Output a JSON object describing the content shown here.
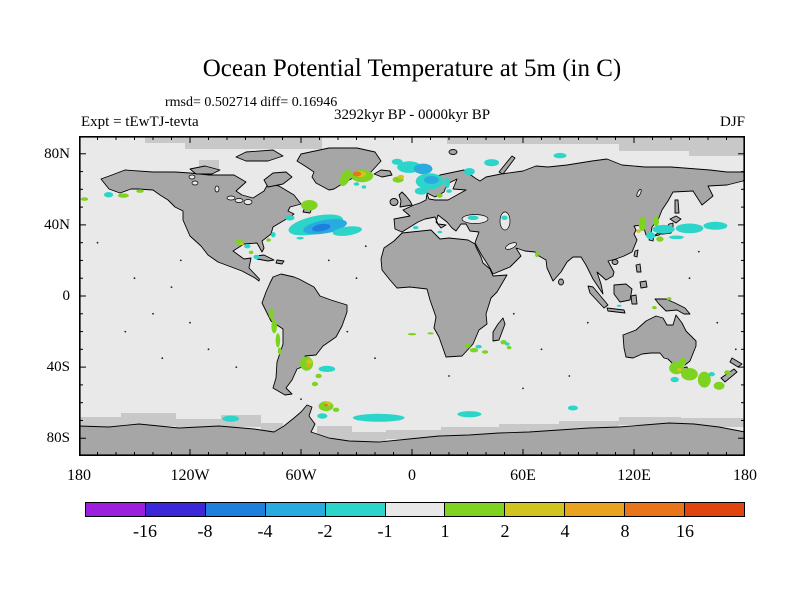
{
  "header": {
    "title": "Ocean Potential Temperature at 5m (in C)",
    "stats": "rmsd= 0.502714 diff= 0.16946",
    "period": "3292kyr BP - 0000kyr BP",
    "experiment": "Expt = tEwTJ-tevta",
    "season": "DJF"
  },
  "map_colors": {
    "land": "#A6A6A6",
    "ocean": "#E9E9E9",
    "mask": "#C8C8C8",
    "coast": "#000000"
  },
  "chart_data": {
    "type": "heatmap",
    "projection": "equirectangular world map",
    "title": "Ocean Potential Temperature at 5m (in C)",
    "variable": "ocean potential temperature anomaly at 5m depth",
    "units": "C",
    "rmsd": 0.502714,
    "diff": 0.16946,
    "comparison": "3292kyr BP - 0000kyr BP",
    "experiment": "tEwTJ-tevta",
    "season": "DJF",
    "grid": false,
    "x_axis": {
      "tick_labels": [
        "180",
        "120W",
        "60W",
        "0",
        "60E",
        "120E",
        "180"
      ],
      "tick_lons": [
        -180,
        -120,
        -60,
        0,
        60,
        120,
        180
      ],
      "minor_step_deg": 10,
      "range": [
        -180,
        180
      ]
    },
    "y_axis": {
      "tick_labels": [
        "80N",
        "40N",
        "0",
        "40S",
        "80S"
      ],
      "tick_lats": [
        80,
        40,
        0,
        -40,
        -80
      ],
      "minor_step_deg": 10,
      "range": [
        -90,
        90
      ]
    },
    "colorbar": {
      "position": "bottom",
      "boundaries": [
        -16,
        -8,
        -4,
        -2,
        -1,
        1,
        2,
        4,
        8,
        16
      ],
      "labels": [
        "-16",
        "-8",
        "-4",
        "-2",
        "-1",
        "1",
        "2",
        "4",
        "8",
        "16"
      ],
      "colors": [
        "#9C1FDE",
        "#3C28D8",
        "#1E7FDC",
        "#29ABE0",
        "#2BD5C9",
        "#E8E8E8",
        "#7ED321",
        "#D2C41E",
        "#E8A41E",
        "#E8751A",
        "#E0440F"
      ]
    },
    "background_note": "most of the ocean lies in the -1 to 1 C bin (light gray)",
    "anomalies": [
      {
        "name": "bering-sea-cyan",
        "lon": -164,
        "lat": 57,
        "dlon": 5,
        "dlat": 3,
        "value": -1.5
      },
      {
        "name": "bering-green",
        "lon": -156,
        "lat": 56.5,
        "dlon": 6,
        "dlat": 2.5,
        "value": 1.5
      },
      {
        "name": "aleutian-green",
        "lon": -177,
        "lat": 54.5,
        "dlon": 4,
        "dlat": 2,
        "value": 1.5
      },
      {
        "name": "gulf-alaska-green",
        "lon": -147,
        "lat": 59,
        "dlon": 4,
        "dlat": 2,
        "value": 1.5
      },
      {
        "name": "gulf-stream-cyan",
        "lon": -52,
        "lat": 40,
        "dlon": 30,
        "dlat": 10,
        "value": -1.5,
        "rot": -12
      },
      {
        "name": "gulf-stream-lightblue",
        "lon": -47,
        "lat": 39,
        "dlon": 24,
        "dlat": 7.5,
        "value": -3,
        "rot": -10
      },
      {
        "name": "gulf-stream-blue",
        "lon": -49,
        "lat": 38.5,
        "dlon": 10,
        "dlat": 4,
        "value": -5,
        "rot": -10
      },
      {
        "name": "gulf-stream-tail-cyan",
        "lon": -35,
        "lat": 36.5,
        "dlon": 16,
        "dlat": 5,
        "value": -1.5,
        "rot": -8
      },
      {
        "name": "nova-scotia-cyan",
        "lon": -66,
        "lat": 44,
        "dlon": 5,
        "dlat": 3,
        "value": -1.5
      },
      {
        "name": "grand-banks-green",
        "lon": -55.5,
        "lat": 51,
        "dlon": 9,
        "dlat": 6,
        "value": 1.5
      },
      {
        "name": "sargasso-cyan-dash",
        "lon": -60.5,
        "lat": 32.5,
        "dlon": 4,
        "dlat": 1.5,
        "value": -1.5
      },
      {
        "name": "se-greenland-green",
        "lon": -36,
        "lat": 66.5,
        "dlon": 5,
        "dlat": 10,
        "value": 1.5,
        "rot": 25
      },
      {
        "name": "denmark-strait-green",
        "lon": -27,
        "lat": 67.5,
        "dlon": 12,
        "dlat": 7,
        "value": 1.5
      },
      {
        "name": "denmark-strait-yellow",
        "lon": -28,
        "lat": 68.6,
        "dlon": 6.5,
        "dlat": 3.5,
        "value": 3
      },
      {
        "name": "denmark-strait-orange",
        "lon": -29.7,
        "lat": 68.6,
        "dlon": 4.5,
        "dlat": 2.8,
        "value": 12
      },
      {
        "name": "irminger-cyan",
        "lon": -30,
        "lat": 63,
        "dlon": 3,
        "dlat": 2,
        "value": -1.5
      },
      {
        "name": "irminger-cyan2",
        "lon": -26,
        "lat": 61.3,
        "dlon": 2.5,
        "dlat": 1.8,
        "value": -1.5
      },
      {
        "name": "iceland-east-green",
        "lon": -7.5,
        "lat": 65.5,
        "dlon": 6,
        "dlat": 3.5,
        "value": 1.5
      },
      {
        "name": "iceland-ne-yellow",
        "lon": -6,
        "lat": 67,
        "dlon": 3.5,
        "dlat": 2.2,
        "value": 3
      },
      {
        "name": "norwegian-cyan-north",
        "lon": -1.5,
        "lat": 72.5,
        "dlon": 13,
        "dlat": 6.5,
        "value": -1.5
      },
      {
        "name": "norwegian-lightblue",
        "lon": 6,
        "lat": 71.5,
        "dlon": 10,
        "dlat": 6,
        "value": -3
      },
      {
        "name": "norwegian-cyan-south",
        "lon": 9.5,
        "lat": 64.5,
        "dlon": 15,
        "dlat": 9,
        "value": -1.5
      },
      {
        "name": "norwegian-lightblue-core",
        "lon": 10.5,
        "lat": 65.3,
        "dlon": 8,
        "dlat": 4.5,
        "value": -3
      },
      {
        "name": "north-sea-cyan",
        "lon": 5,
        "lat": 59,
        "dlon": 7,
        "dlat": 4,
        "value": -1.5
      },
      {
        "name": "iceland-north-cyan",
        "lon": -8,
        "lat": 75.5,
        "dlon": 6,
        "dlat": 3.5,
        "value": -1.5
      },
      {
        "name": "norway-coast-cyan",
        "lon": 19,
        "lat": 63.5,
        "dlon": 3,
        "dlat": 6,
        "value": -1.5
      },
      {
        "name": "skagerrak-green",
        "lon": 15,
        "lat": 56.5,
        "dlon": 3,
        "dlat": 2.5,
        "value": 1.5
      },
      {
        "name": "barents-cyan",
        "lon": 31,
        "lat": 70,
        "dlon": 6,
        "dlat": 4,
        "value": -1.5
      },
      {
        "name": "barents-cyan2",
        "lon": 43,
        "lat": 75,
        "dlon": 8,
        "dlat": 4,
        "value": -1.5
      },
      {
        "name": "kara-cyan",
        "lon": 80,
        "lat": 79,
        "dlon": 7,
        "dlat": 3,
        "value": -1.5
      },
      {
        "name": "baltic-cyan",
        "lon": 20,
        "lat": 59,
        "dlon": 3,
        "dlat": 2,
        "value": -1.5
      },
      {
        "name": "black-sea-cyan",
        "lon": 33,
        "lat": 44,
        "dlon": 6,
        "dlat": 2.5,
        "value": -1.5
      },
      {
        "name": "caspian-cyan",
        "lon": 50,
        "lat": 44,
        "dlon": 3.5,
        "dlat": 2.5,
        "value": -1.5
      },
      {
        "name": "west-med-cyan",
        "lon": 2,
        "lat": 38.5,
        "dlon": 3,
        "dlat": 1.8,
        "value": -1.5
      },
      {
        "name": "east-med-cyan",
        "lon": 15,
        "lat": 36,
        "dlon": 2.5,
        "dlat": 1.5,
        "value": -1.5
      },
      {
        "name": "bohai-green",
        "lon": 124.5,
        "lat": 40.5,
        "dlon": 4,
        "dlat": 8,
        "value": 1.5
      },
      {
        "name": "japan-sea-green",
        "lon": 132,
        "lat": 42,
        "dlon": 3,
        "dlat": 6,
        "value": 1.5
      },
      {
        "name": "east-china-cyan",
        "lon": 129,
        "lat": 34,
        "dlon": 5,
        "dlat": 4,
        "value": -1.5
      },
      {
        "name": "japan-south-cyan",
        "lon": 136,
        "lat": 37.5,
        "dlon": 12,
        "dlat": 5,
        "value": -1.5
      },
      {
        "name": "yellow-sea-yellow",
        "lon": 122.5,
        "lat": 36.5,
        "dlon": 2.5,
        "dlat": 2,
        "value": 3
      },
      {
        "name": "shikoku-green",
        "lon": 134,
        "lat": 32,
        "dlon": 4,
        "dlat": 3,
        "value": 1.5
      },
      {
        "name": "kuroshio-cyan-west",
        "lon": 150,
        "lat": 38,
        "dlon": 15,
        "dlat": 5.5,
        "value": -1.5
      },
      {
        "name": "kuroshio-cyan-east",
        "lon": 164,
        "lat": 39.5,
        "dlon": 13,
        "dlat": 4.5,
        "value": -1.5
      },
      {
        "name": "kuroshio-dash-cyan",
        "lon": 143,
        "lat": 33,
        "dlon": 8,
        "dlat": 2,
        "value": -1.5
      },
      {
        "name": "gulf-mexico-green",
        "lon": -93.5,
        "lat": 30.5,
        "dlon": 4.5,
        "dlat": 3,
        "value": 1.5
      },
      {
        "name": "gulf-mexico-yellow",
        "lon": -92,
        "lat": 29.3,
        "dlon": 2,
        "dlat": 1.5,
        "value": 3
      },
      {
        "name": "gulf-mexico-cyan",
        "lon": -89,
        "lat": 28,
        "dlon": 3.5,
        "dlat": 2.5,
        "value": -1.5
      },
      {
        "name": "yucatan-green",
        "lon": -87,
        "lat": 24.5,
        "dlon": 2.5,
        "dlat": 2,
        "value": 1.5
      },
      {
        "name": "caribbean-cyan",
        "lon": -84,
        "lat": 22,
        "dlon": 3.5,
        "dlat": 2.5,
        "value": -1.5
      },
      {
        "name": "bahamas-green",
        "lon": -77.5,
        "lat": 31.5,
        "dlon": 2.5,
        "dlat": 2,
        "value": 1.5
      },
      {
        "name": "hatteras-cyan",
        "lon": -75,
        "lat": 34.5,
        "dlon": 2.5,
        "dlat": 3,
        "value": -1.5
      },
      {
        "name": "peru-coast-green",
        "lon": -76,
        "lat": -10,
        "dlon": 3,
        "dlat": 6,
        "value": 1.5
      },
      {
        "name": "chile-north-green",
        "lon": -74.5,
        "lat": -17,
        "dlon": 3,
        "dlat": 8,
        "value": 1.5
      },
      {
        "name": "chile-central-green",
        "lon": -72.5,
        "lat": -25,
        "dlon": 2.5,
        "dlat": 8,
        "value": 1.5
      },
      {
        "name": "chile-south-green",
        "lon": -71.5,
        "lat": -31,
        "dlon": 2,
        "dlat": 4,
        "value": 1.5
      },
      {
        "name": "argentine-green",
        "lon": -57,
        "lat": -38,
        "dlon": 7,
        "dlat": 8,
        "value": 1.5
      },
      {
        "name": "argentine-yellow",
        "lon": -55.5,
        "lat": -37,
        "dlon": 3,
        "dlat": 3,
        "value": 3
      },
      {
        "name": "argentine-orange",
        "lon": -56,
        "lat": -39,
        "dlon": 2,
        "dlat": 2,
        "value": 6
      },
      {
        "name": "argentine-cyan",
        "lon": -46,
        "lat": -41,
        "dlon": 9,
        "dlat": 3.5,
        "value": -1.5
      },
      {
        "name": "patagonia-green",
        "lon": -50.5,
        "lat": -45,
        "dlon": 3.5,
        "dlat": 2.5,
        "value": 1.5
      },
      {
        "name": "falklands-green",
        "lon": -52.5,
        "lat": -49.5,
        "dlon": 3.5,
        "dlat": 2.5,
        "value": 1.5
      },
      {
        "name": "south-georgia-green",
        "lon": -46.5,
        "lat": -62,
        "dlon": 8,
        "dlat": 5.5,
        "value": 1.5
      },
      {
        "name": "south-georgia-yellow",
        "lon": -45.5,
        "lat": -60.7,
        "dlon": 3.5,
        "dlat": 2.5,
        "value": 3
      },
      {
        "name": "south-georgia-orange",
        "lon": -46.5,
        "lat": -61.3,
        "dlon": 2,
        "dlat": 1.5,
        "value": 12
      },
      {
        "name": "peninsula-green",
        "lon": -41,
        "lat": -64,
        "dlon": 3.5,
        "dlat": 2.5,
        "value": 1.5
      },
      {
        "name": "southern-ocean-pacific-cyan",
        "lon": -98,
        "lat": -69,
        "dlon": 9,
        "dlat": 3.5,
        "value": -1.5
      },
      {
        "name": "southern-ocean-weddell-cyan",
        "lon": -48.5,
        "lat": -67.5,
        "dlon": 5.5,
        "dlat": 3,
        "value": -1.5
      },
      {
        "name": "southern-ocean-atlantic-cyan",
        "lon": -18,
        "lat": -68.5,
        "dlon": 28,
        "dlat": 4.5,
        "value": -1.5
      },
      {
        "name": "southern-ocean-indian-cyan",
        "lon": 31,
        "lat": -66.5,
        "dlon": 13,
        "dlat": 3.5,
        "value": -1.5
      },
      {
        "name": "southern-ocean-indian2-cyan",
        "lon": 87,
        "lat": -63,
        "dlon": 5.5,
        "dlat": 2.8,
        "value": -1.5
      },
      {
        "name": "agulhas-green1",
        "lon": 30,
        "lat": -28,
        "dlon": 3.5,
        "dlat": 2.5,
        "value": 1.5
      },
      {
        "name": "agulhas-green2",
        "lon": 33.5,
        "lat": -30.5,
        "dlon": 4.5,
        "dlat": 2.5,
        "value": 1.5
      },
      {
        "name": "agulhas-cyan",
        "lon": 36,
        "lat": -28.5,
        "dlon": 3.5,
        "dlat": 2,
        "value": -1.5
      },
      {
        "name": "agulhas-green3",
        "lon": 39.5,
        "lat": -31.5,
        "dlon": 3.5,
        "dlat": 2,
        "value": 1.5
      },
      {
        "name": "walvis-green-dash",
        "lon": 0,
        "lat": -21.5,
        "dlon": 4.5,
        "dlat": 1.4,
        "value": 1.5
      },
      {
        "name": "walvis-green-dash2",
        "lon": 10,
        "lat": -21,
        "dlon": 3.5,
        "dlat": 1.2,
        "value": 1.5
      },
      {
        "name": "madagascar-green1",
        "lon": 49.5,
        "lat": -26,
        "dlon": 3.5,
        "dlat": 2.5,
        "value": 1.5
      },
      {
        "name": "madagascar-green2",
        "lon": 52.5,
        "lat": -29,
        "dlon": 2.5,
        "dlat": 2,
        "value": 1.5
      },
      {
        "name": "madagascar-cyan",
        "lon": 51.5,
        "lat": -27,
        "dlon": 2.5,
        "dlat": 1.8,
        "value": -1.5
      },
      {
        "name": "arabian-sea-green",
        "lon": 67.5,
        "lat": 23.5,
        "dlon": 2,
        "dlat": 3.5,
        "value": 1.5
      },
      {
        "name": "tasman-green1",
        "lon": 143,
        "lat": -40.5,
        "dlon": 8,
        "dlat": 7,
        "value": 1.5
      },
      {
        "name": "tasman-green2",
        "lon": 150,
        "lat": -44,
        "dlon": 9,
        "dlat": 7,
        "value": 1.5
      },
      {
        "name": "tasman-green3",
        "lon": 158,
        "lat": -47,
        "dlon": 7,
        "dlat": 9,
        "value": 1.5
      },
      {
        "name": "tasman-green4",
        "lon": 166,
        "lat": -50.5,
        "dlon": 6,
        "dlat": 4.5,
        "value": 1.5
      },
      {
        "name": "tasman-cyan",
        "lon": 142,
        "lat": -47,
        "dlon": 4.5,
        "dlat": 3,
        "value": -1.5
      },
      {
        "name": "nz-cyan",
        "lon": 162,
        "lat": -44,
        "dlon": 3.5,
        "dlat": 2.5,
        "value": -1.5
      },
      {
        "name": "bass-yellow",
        "lon": 144.5,
        "lat": -41.5,
        "dlon": 2.5,
        "dlat": 2,
        "value": 3
      },
      {
        "name": "chatham-green",
        "lon": 170.5,
        "lat": -43,
        "dlon": 3.5,
        "dlat": 2.5,
        "value": 1.5
      },
      {
        "name": "se-australia-green",
        "lon": 146.5,
        "lat": -37,
        "dlon": 3.5,
        "dlat": 4.5,
        "value": 1.5
      },
      {
        "name": "new-guinea-green",
        "lon": 139,
        "lat": -1.5,
        "dlon": 2.5,
        "dlat": 1.8,
        "value": 1.5
      },
      {
        "name": "banda-green",
        "lon": 131,
        "lat": -6.5,
        "dlon": 2.5,
        "dlat": 1.8,
        "value": 1.5
      },
      {
        "name": "java-cyan",
        "lon": 112,
        "lat": -5.5,
        "dlon": 2.5,
        "dlat": 1.2,
        "value": -1.5
      }
    ],
    "speckles": [
      [
        -125,
        20
      ],
      [
        -130,
        5
      ],
      [
        -140,
        -10
      ],
      [
        -120,
        -15
      ],
      [
        -110,
        -30
      ],
      [
        -135,
        -35
      ],
      [
        -150,
        10
      ],
      [
        -155,
        -20
      ],
      [
        -95,
        -40
      ],
      [
        -30,
        10
      ],
      [
        -35,
        -20
      ],
      [
        -20,
        -35
      ],
      [
        -45,
        20
      ],
      [
        -25,
        28
      ],
      [
        55,
        -10
      ],
      [
        70,
        -30
      ],
      [
        85,
        -45
      ],
      [
        95,
        -15
      ],
      [
        60,
        -52
      ],
      [
        20,
        -45
      ],
      [
        -60,
        -58
      ],
      [
        150,
        10
      ],
      [
        165,
        -15
      ],
      [
        175,
        -30
      ],
      [
        155,
        25
      ],
      [
        -170,
        30
      ]
    ]
  }
}
